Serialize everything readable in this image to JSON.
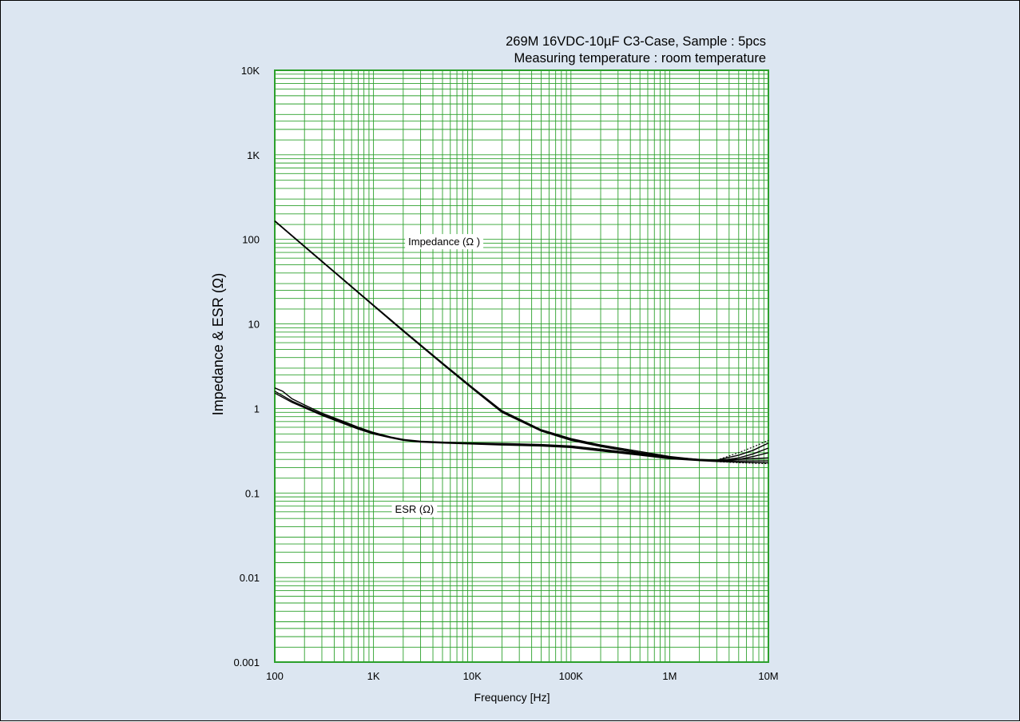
{
  "chart_data": {
    "type": "line",
    "title_line1": "269M  16VDC-10µF C3-Case, Sample : 5pcs",
    "title_line2": "Measuring temperature : room temperature",
    "xlabel": "Frequency [Hz]",
    "ylabel": "Impedance    &   ESR (Ω)",
    "x_scale": "log",
    "y_scale": "log",
    "xlim": [
      100,
      10000000
    ],
    "ylim": [
      0.001,
      10000
    ],
    "grid": true,
    "x_tick_labels": [
      {
        "value": 100,
        "label": "100"
      },
      {
        "value": 1000,
        "label": "1K"
      },
      {
        "value": 10000,
        "label": "10K"
      },
      {
        "value": 100000,
        "label": "100K"
      },
      {
        "value": 1000000,
        "label": "1M"
      },
      {
        "value": 10000000,
        "label": "10M"
      }
    ],
    "y_tick_labels": [
      {
        "value": 10000,
        "label": "10K"
      },
      {
        "value": 1000,
        "label": "1K"
      },
      {
        "value": 100,
        "label": "100"
      },
      {
        "value": 10,
        "label": "10"
      },
      {
        "value": 1,
        "label": "1"
      },
      {
        "value": 0.1,
        "label": "0.1"
      },
      {
        "value": 0.01,
        "label": "0.01"
      },
      {
        "value": 0.001,
        "label": "0.001"
      }
    ],
    "annotations": [
      {
        "name": "impedance",
        "text": "Impedance (Ω )",
        "x": 5200,
        "y": 95
      },
      {
        "name": "esr",
        "text": "ESR (Ω)",
        "x": 2600,
        "y": 0.065
      }
    ],
    "series": [
      {
        "key": "impedance-1",
        "values": [
          [
            100,
            165
          ],
          [
            200,
            82
          ],
          [
            500,
            33
          ],
          [
            1000,
            16.5
          ],
          [
            2000,
            8.3
          ],
          [
            5000,
            3.4
          ],
          [
            10000,
            1.75
          ],
          [
            20000,
            0.92
          ],
          [
            50000,
            0.55
          ],
          [
            100000,
            0.43
          ],
          [
            200000,
            0.36
          ],
          [
            500000,
            0.3
          ],
          [
            1000000,
            0.265
          ],
          [
            2000000,
            0.245
          ],
          [
            3000000,
            0.24
          ],
          [
            5000000,
            0.26
          ],
          [
            7000000,
            0.29
          ],
          [
            10000000,
            0.34
          ]
        ]
      },
      {
        "key": "impedance-2",
        "values": [
          [
            100,
            166
          ],
          [
            200,
            83
          ],
          [
            500,
            33.3
          ],
          [
            1000,
            16.7
          ],
          [
            2000,
            8.4
          ],
          [
            5000,
            3.45
          ],
          [
            10000,
            1.78
          ],
          [
            20000,
            0.94
          ],
          [
            50000,
            0.56
          ],
          [
            100000,
            0.44
          ],
          [
            200000,
            0.37
          ],
          [
            500000,
            0.31
          ],
          [
            1000000,
            0.27
          ],
          [
            2000000,
            0.248
          ],
          [
            3000000,
            0.245
          ],
          [
            5000000,
            0.28
          ],
          [
            7000000,
            0.32
          ],
          [
            10000000,
            0.39
          ]
        ]
      },
      {
        "key": "impedance-3",
        "values": [
          [
            100,
            164
          ],
          [
            200,
            82
          ],
          [
            500,
            32.8
          ],
          [
            1000,
            16.4
          ],
          [
            2000,
            8.2
          ],
          [
            5000,
            3.35
          ],
          [
            10000,
            1.72
          ],
          [
            20000,
            0.9
          ],
          [
            50000,
            0.54
          ],
          [
            100000,
            0.42
          ],
          [
            200000,
            0.355
          ],
          [
            500000,
            0.295
          ],
          [
            1000000,
            0.26
          ],
          [
            2000000,
            0.243
          ],
          [
            3000000,
            0.238
          ],
          [
            5000000,
            0.25
          ],
          [
            7000000,
            0.27
          ],
          [
            10000000,
            0.3
          ]
        ]
      },
      {
        "key": "esr-1",
        "values": [
          [
            100,
            1.75
          ],
          [
            120,
            1.6
          ],
          [
            150,
            1.3
          ],
          [
            200,
            1.1
          ],
          [
            300,
            0.88
          ],
          [
            500,
            0.7
          ],
          [
            700,
            0.6
          ],
          [
            1000,
            0.52
          ],
          [
            1500,
            0.46
          ],
          [
            2000,
            0.43
          ],
          [
            3000,
            0.41
          ],
          [
            5000,
            0.4
          ],
          [
            10000,
            0.39
          ],
          [
            20000,
            0.385
          ],
          [
            50000,
            0.375
          ],
          [
            100000,
            0.36
          ],
          [
            200000,
            0.33
          ],
          [
            500000,
            0.29
          ],
          [
            1000000,
            0.265
          ],
          [
            2000000,
            0.25
          ],
          [
            3000000,
            0.245
          ],
          [
            5000000,
            0.25
          ],
          [
            7000000,
            0.255
          ],
          [
            10000000,
            0.26
          ]
        ]
      },
      {
        "key": "esr-2",
        "values": [
          [
            100,
            1.6
          ],
          [
            150,
            1.22
          ],
          [
            200,
            1.05
          ],
          [
            300,
            0.85
          ],
          [
            500,
            0.68
          ],
          [
            700,
            0.58
          ],
          [
            1000,
            0.51
          ],
          [
            1500,
            0.455
          ],
          [
            2000,
            0.425
          ],
          [
            3000,
            0.405
          ],
          [
            5000,
            0.395
          ],
          [
            10000,
            0.385
          ],
          [
            20000,
            0.375
          ],
          [
            50000,
            0.365
          ],
          [
            100000,
            0.35
          ],
          [
            200000,
            0.32
          ],
          [
            500000,
            0.285
          ],
          [
            1000000,
            0.26
          ],
          [
            2000000,
            0.245
          ],
          [
            3000000,
            0.24
          ],
          [
            5000000,
            0.24
          ],
          [
            7000000,
            0.24
          ],
          [
            10000000,
            0.24
          ]
        ]
      },
      {
        "key": "esr-3",
        "values": [
          [
            100,
            1.52
          ],
          [
            150,
            1.18
          ],
          [
            200,
            1.02
          ],
          [
            300,
            0.83
          ],
          [
            500,
            0.66
          ],
          [
            700,
            0.57
          ],
          [
            1000,
            0.5
          ],
          [
            1500,
            0.45
          ],
          [
            2000,
            0.42
          ],
          [
            3000,
            0.4
          ],
          [
            5000,
            0.39
          ],
          [
            10000,
            0.38
          ],
          [
            20000,
            0.37
          ],
          [
            50000,
            0.36
          ],
          [
            100000,
            0.345
          ],
          [
            200000,
            0.315
          ],
          [
            500000,
            0.28
          ],
          [
            1000000,
            0.255
          ],
          [
            2000000,
            0.242
          ],
          [
            3000000,
            0.236
          ],
          [
            5000000,
            0.232
          ],
          [
            7000000,
            0.23
          ],
          [
            10000000,
            0.228
          ]
        ]
      }
    ]
  }
}
